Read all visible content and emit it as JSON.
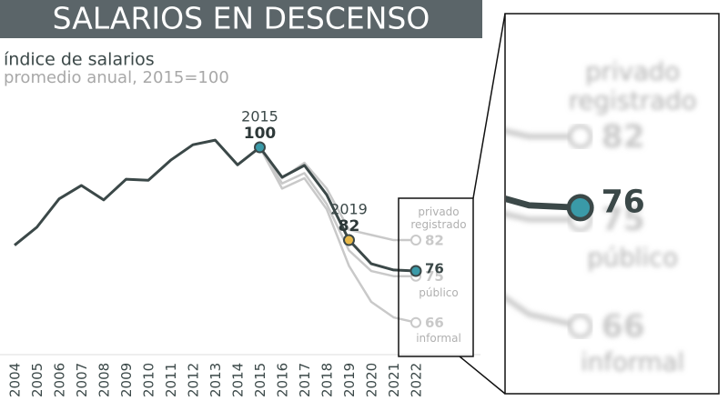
{
  "chart_data": {
    "type": "line",
    "title": "SALARIOS EN DESCENSO",
    "subtitle": "índice de salarios",
    "y_label": "promedio anual, 2015=100",
    "categories": [
      "2004",
      "2005",
      "2006",
      "2007",
      "2008",
      "2009",
      "2010",
      "2011",
      "2012",
      "2013",
      "2014",
      "2015",
      "2016",
      "2017",
      "2018",
      "2019",
      "2020",
      "2021",
      "2022"
    ],
    "series": [
      {
        "color": "#3b4848",
        "values": [
          81,
          84.5,
          90,
          92.6,
          89.8,
          93.8,
          93.6,
          97.5,
          100.5,
          101.4,
          96.6,
          100,
          94.2,
          96.5,
          90.8,
          82,
          77.4,
          76.2,
          76
        ]
      },
      {
        "name": "privado registrado",
        "color": "#c9c9c9",
        "values": [
          null,
          null,
          null,
          null,
          null,
          null,
          null,
          null,
          null,
          null,
          null,
          100,
          94,
          97,
          92,
          84,
          83,
          82,
          82
        ]
      },
      {
        "name": "público",
        "color": "#c9c9c9",
        "values": [
          null,
          null,
          null,
          null,
          null,
          null,
          null,
          null,
          null,
          null,
          null,
          100,
          93,
          95,
          89,
          80,
          76,
          75,
          75
        ]
      },
      {
        "name": "informal",
        "color": "#c9c9c9",
        "values": [
          null,
          null,
          null,
          null,
          null,
          null,
          null,
          null,
          null,
          null,
          null,
          100,
          92,
          94,
          88,
          77,
          70,
          67,
          66
        ]
      }
    ],
    "markers": [
      {
        "category": "2015",
        "color": "#3a9aa8"
      },
      {
        "category": "2019",
        "color": "#e8b848"
      },
      {
        "category": "2022",
        "color": "#3a9aa8"
      }
    ],
    "ylim": [
      60,
      105
    ]
  }
}
